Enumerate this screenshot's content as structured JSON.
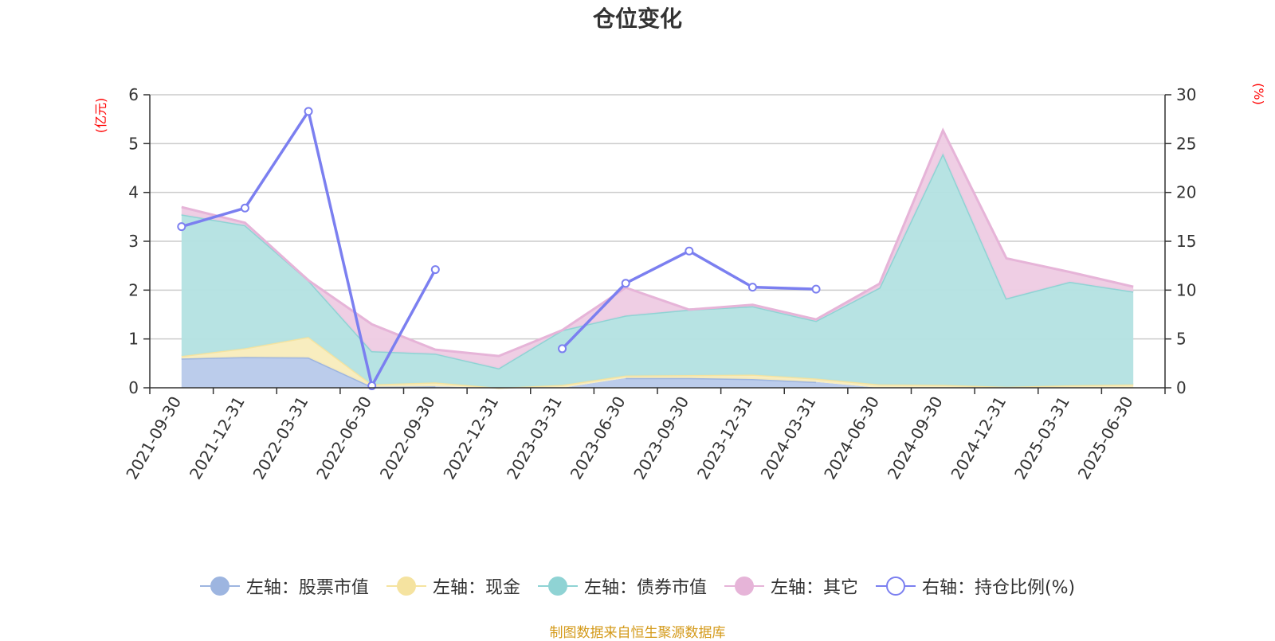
{
  "title": "仓位变化",
  "source": "制图数据来自恒生聚源数据库",
  "chart_data": {
    "type": "area",
    "title": "仓位变化",
    "categories": [
      "2021-09-30",
      "2021-12-31",
      "2022-03-31",
      "2022-06-30",
      "2022-09-30",
      "2022-12-31",
      "2023-03-31",
      "2023-06-30",
      "2023-09-30",
      "2023-12-31",
      "2024-03-31",
      "2024-06-30",
      "2024-09-30",
      "2024-12-31",
      "2025-03-31",
      "2025-06-30"
    ],
    "left_axis": {
      "unit": "(亿元)",
      "ticks": [
        "0",
        "1",
        "2",
        "3",
        "4",
        "5",
        "6"
      ],
      "ylim": [
        0,
        6
      ]
    },
    "right_axis": {
      "unit": "(%)",
      "ticks": [
        "0",
        "5",
        "10",
        "15",
        "20",
        "25",
        "30"
      ],
      "ylim": [
        0,
        30
      ]
    },
    "grid": true,
    "legend_position": "bottom",
    "series": [
      {
        "name": "左轴：股票市值",
        "axis": "left",
        "stack": true,
        "color": "#9db5e0",
        "fill": "#b7c9ea",
        "values": [
          0.6,
          0.63,
          0.62,
          0.02,
          0.03,
          null,
          null,
          0.2,
          0.2,
          0.18,
          0.12,
          null,
          null,
          null,
          null,
          null
        ]
      },
      {
        "name": "左轴：现金",
        "axis": "left",
        "stack": true,
        "color": "#f5e3a0",
        "fill": "#f8ecbc",
        "values": [
          0.05,
          0.18,
          0.42,
          0.05,
          0.08,
          0.0,
          0.06,
          0.05,
          0.06,
          0.09,
          0.07,
          0.07,
          0.06,
          0.02,
          0.05,
          0.07
        ]
      },
      {
        "name": "左轴：债券市值",
        "axis": "left",
        "stack": true,
        "color": "#8fd3d4",
        "fill": "#b3e2e2",
        "values": [
          2.9,
          2.52,
          1.16,
          0.68,
          0.59,
          0.4,
          1.12,
          1.23,
          1.34,
          1.4,
          1.18,
          1.98,
          4.74,
          1.81,
          2.12,
          1.9
        ]
      },
      {
        "name": "左轴：其它",
        "axis": "left",
        "stack": true,
        "color": "#e6b4d8",
        "fill": "#eecbe3",
        "values": [
          0.15,
          0.05,
          0.0,
          0.55,
          0.08,
          0.25,
          0.0,
          0.57,
          0.0,
          0.03,
          0.03,
          0.08,
          0.47,
          0.82,
          0.2,
          0.1
        ]
      },
      {
        "name": "右轴：持仓比例(%)",
        "axis": "right",
        "stack": false,
        "color": "#7b7ff0",
        "values": [
          16.5,
          18.4,
          28.3,
          0.2,
          12.1,
          null,
          4.0,
          10.7,
          14.0,
          10.3,
          10.1,
          null,
          null,
          null,
          null,
          null
        ]
      }
    ]
  }
}
